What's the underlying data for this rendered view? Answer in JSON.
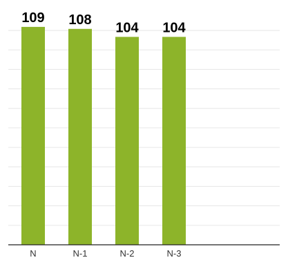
{
  "chart_data": {
    "type": "bar",
    "categories": [
      "N",
      "N-1",
      "N-2",
      "N-3"
    ],
    "values": [
      109,
      108,
      104,
      104
    ],
    "data_labels": [
      "109",
      "108",
      "104",
      "104"
    ],
    "ylim": [
      0,
      110
    ],
    "grid": true,
    "bar_color": "#8db42a"
  }
}
